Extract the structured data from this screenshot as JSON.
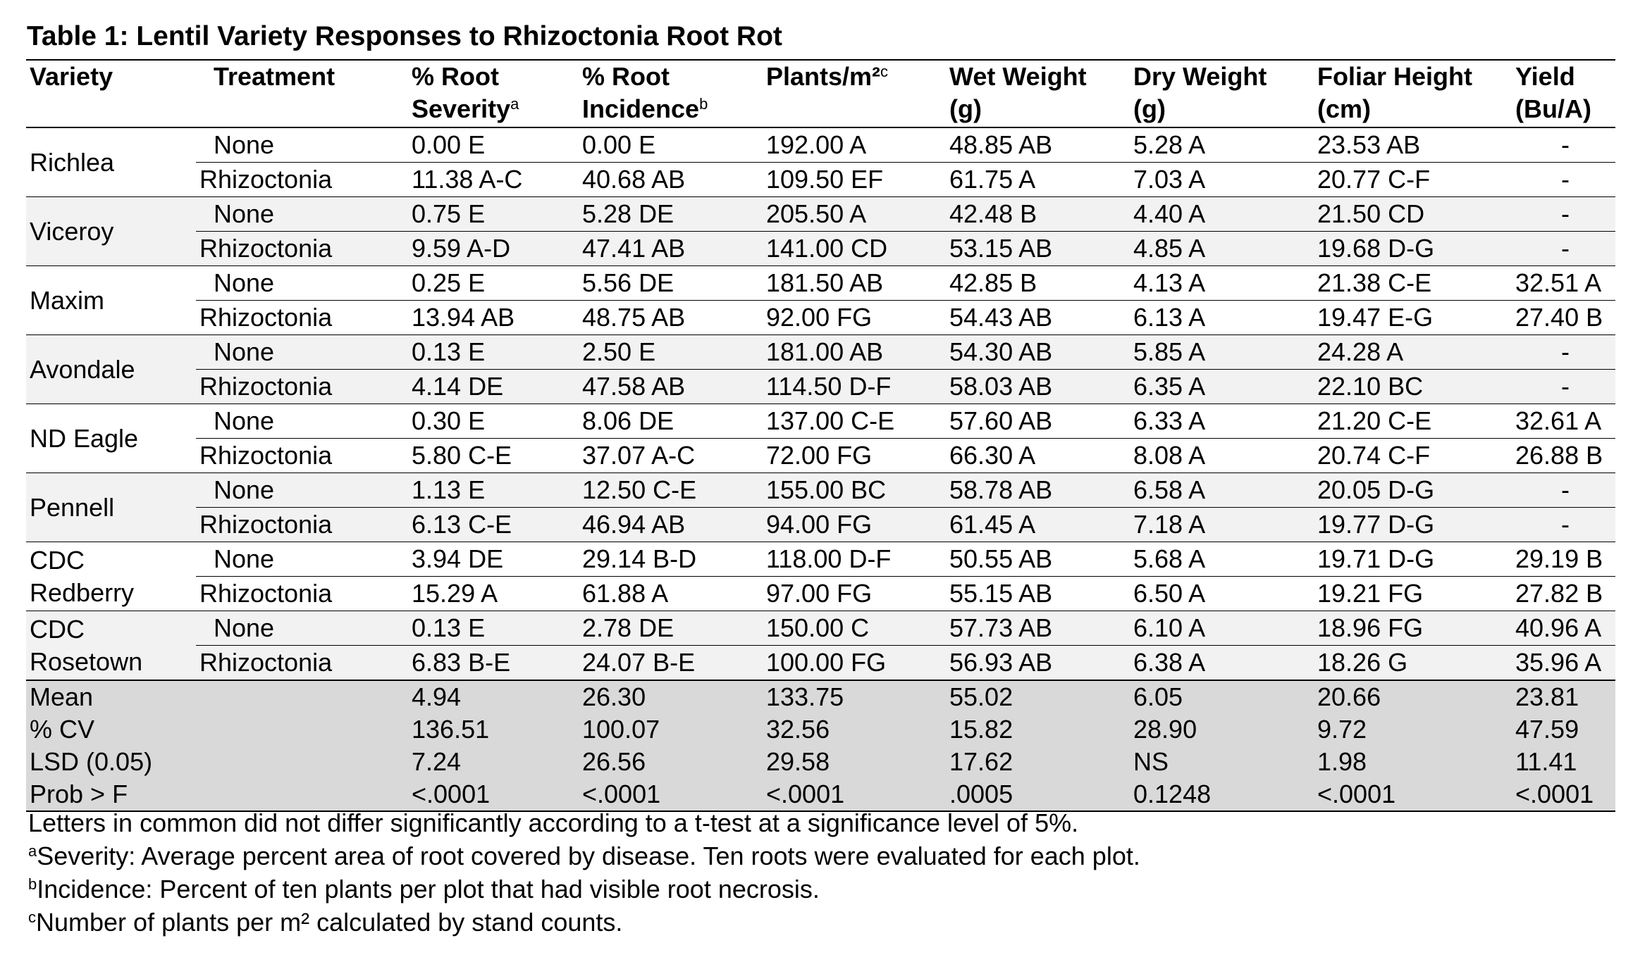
{
  "title": "Table 1: Lentil Variety Responses to Rhizoctonia Root Rot",
  "headers": [
    {
      "text": "Variety"
    },
    {
      "text": "Treatment"
    },
    {
      "text": "% Root Severity",
      "sup": "a"
    },
    {
      "text": "% Root Incidence",
      "sup": "b"
    },
    {
      "text": "Plants/m²",
      "sup": "c"
    },
    {
      "text": "Wet Weight (g)"
    },
    {
      "text": "Dry Weight (g)"
    },
    {
      "text": "Foliar Height (cm)"
    },
    {
      "text": "Yield (Bu/A)"
    }
  ],
  "groups": [
    {
      "variety": "Richlea",
      "rows": [
        [
          "None",
          "0.00 E",
          "0.00 E",
          "192.00 A",
          "48.85 AB",
          "5.28 A",
          "23.53 AB",
          "-"
        ],
        [
          "Rhizoctonia",
          "11.38 A-C",
          "40.68 AB",
          "109.50 EF",
          "61.75 A",
          "7.03 A",
          "20.77 C-F",
          "-"
        ]
      ]
    },
    {
      "variety": "Viceroy",
      "rows": [
        [
          "None",
          "0.75 E",
          "5.28 DE",
          "205.50 A",
          "42.48 B",
          "4.40 A",
          "21.50 CD",
          "-"
        ],
        [
          "Rhizoctonia",
          "9.59 A-D",
          "47.41 AB",
          "141.00 CD",
          "53.15 AB",
          "4.85 A",
          "19.68 D-G",
          "-"
        ]
      ]
    },
    {
      "variety": "Maxim",
      "rows": [
        [
          "None",
          "0.25 E",
          "5.56 DE",
          "181.50 AB",
          "42.85 B",
          "4.13 A",
          "21.38 C-E",
          "32.51 A"
        ],
        [
          "Rhizoctonia",
          "13.94 AB",
          "48.75 AB",
          "92.00 FG",
          "54.43 AB",
          "6.13 A",
          "19.47 E-G",
          "27.40 B"
        ]
      ]
    },
    {
      "variety": "Avondale",
      "rows": [
        [
          "None",
          "0.13 E",
          "2.50 E",
          "181.00 AB",
          "54.30 AB",
          "5.85 A",
          "24.28 A",
          "-"
        ],
        [
          "Rhizoctonia",
          "4.14 DE",
          "47.58 AB",
          "114.50 D-F",
          "58.03 AB",
          "6.35 A",
          "22.10 BC",
          "-"
        ]
      ]
    },
    {
      "variety": "ND Eagle",
      "rows": [
        [
          "None",
          "0.30 E",
          "8.06 DE",
          "137.00 C-E",
          "57.60 AB",
          "6.33 A",
          "21.20 C-E",
          "32.61 A"
        ],
        [
          "Rhizoctonia",
          "5.80 C-E",
          "37.07 A-C",
          "72.00 FG",
          "66.30 A",
          "8.08 A",
          "20.74 C-F",
          "26.88 B"
        ]
      ]
    },
    {
      "variety": "Pennell",
      "rows": [
        [
          "None",
          "1.13 E",
          "12.50 C-E",
          "155.00 BC",
          "58.78 AB",
          "6.58 A",
          "20.05 D-G",
          "-"
        ],
        [
          "Rhizoctonia",
          "6.13 C-E",
          "46.94 AB",
          "94.00 FG",
          "61.45 A",
          "7.18 A",
          "19.77 D-G",
          "-"
        ]
      ]
    },
    {
      "variety": "CDC Redberry",
      "rows": [
        [
          "None",
          "3.94 DE",
          "29.14 B-D",
          "118.00 D-F",
          "50.55 AB",
          "5.68 A",
          "19.71 D-G",
          "29.19 B"
        ],
        [
          "Rhizoctonia",
          "15.29 A",
          "61.88 A",
          "97.00 FG",
          "55.15 AB",
          "6.50 A",
          "19.21 FG",
          "27.82 B"
        ]
      ]
    },
    {
      "variety": "CDC Rosetown",
      "rows": [
        [
          "None",
          "0.13 E",
          "2.78 DE",
          "150.00 C",
          "57.73 AB",
          "6.10 A",
          "18.96 FG",
          "40.96 A"
        ],
        [
          "Rhizoctonia",
          "6.83 B-E",
          "24.07 B-E",
          "100.00 FG",
          "56.93 AB",
          "6.38 A",
          "18.26 G",
          "35.96 A"
        ]
      ]
    }
  ],
  "stats": [
    [
      "Mean",
      "4.94",
      "26.30",
      "133.75",
      "55.02",
      "6.05",
      "20.66",
      "23.81"
    ],
    [
      "% CV",
      "136.51",
      "100.07",
      "32.56",
      "15.82",
      "28.90",
      "9.72",
      "47.59"
    ],
    [
      "LSD (0.05)",
      "7.24",
      "26.56",
      "29.58",
      "17.62",
      "NS",
      "1.98",
      "11.41"
    ],
    [
      "Prob > F",
      "<.0001",
      "<.0001",
      "<.0001",
      ".0005",
      "0.1248",
      "<.0001",
      "<.0001"
    ]
  ],
  "footnotes": [
    {
      "text": "Letters in common did not differ significantly according to a t-test at a significance level of 5%."
    },
    {
      "sup": "a",
      "text": "Severity: Average percent area of root covered by disease. Ten roots were evaluated for each plot."
    },
    {
      "sup": "b",
      "text": "Incidence: Percent of ten plants per plot that had visible root necrosis."
    },
    {
      "sup": "c",
      "text": "Number of plants per m² calculated by stand counts."
    }
  ]
}
